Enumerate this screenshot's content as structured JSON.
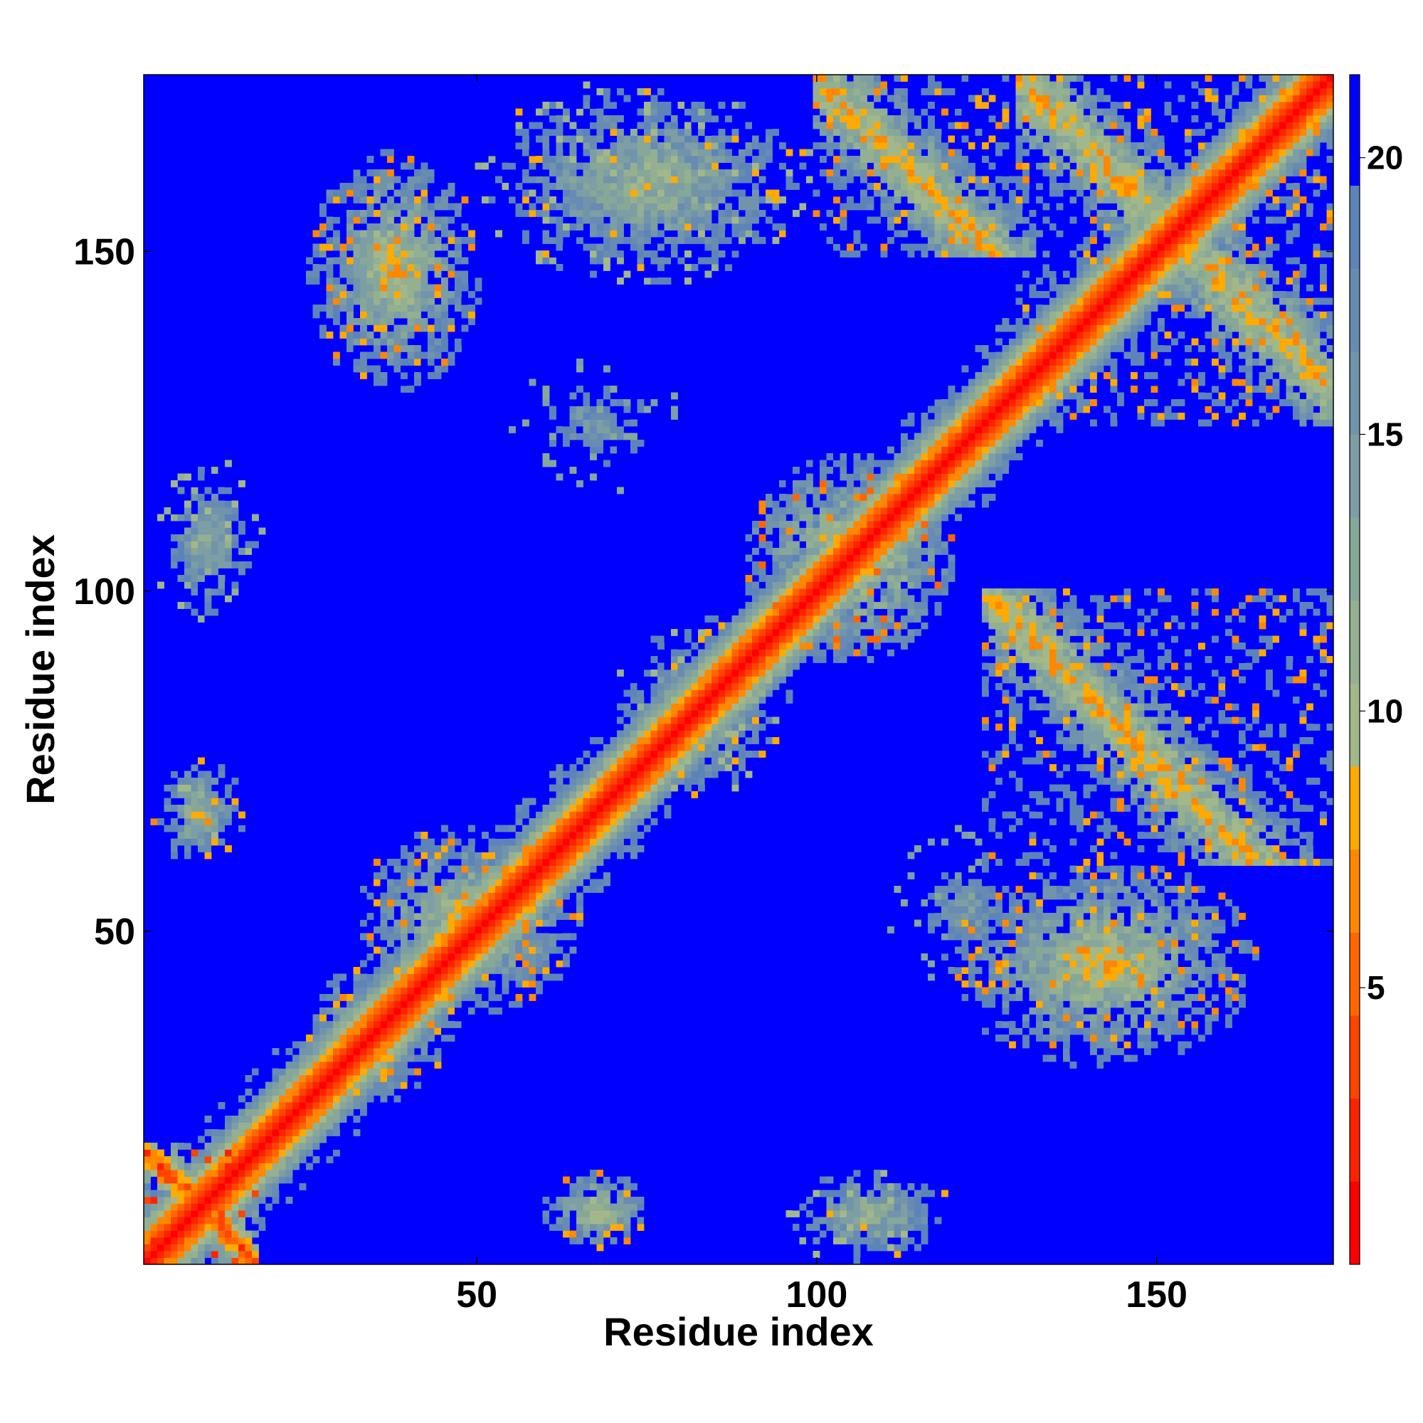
{
  "chart_data": {
    "type": "heatmap",
    "title": "",
    "xlabel": "Residue index",
    "ylabel": "Residue index",
    "n_residues": 176,
    "xlim": [
      1,
      176
    ],
    "ylim": [
      1,
      176
    ],
    "xticks": [
      50,
      100,
      150
    ],
    "yticks": [
      50,
      100,
      150
    ],
    "colorbar": {
      "ticks": [
        5,
        10,
        15,
        20
      ],
      "range": [
        0,
        21.5
      ],
      "levels": [
        {
          "upto": 1.5,
          "color": "#ff0000"
        },
        {
          "upto": 3.0,
          "color": "#ff2200"
        },
        {
          "upto": 4.5,
          "color": "#ff4400"
        },
        {
          "upto": 6.0,
          "color": "#ff6600"
        },
        {
          "upto": 7.5,
          "color": "#ff8800"
        },
        {
          "upto": 9.0,
          "color": "#ffaa00"
        },
        {
          "upto": 10.5,
          "color": "#a3b88a"
        },
        {
          "upto": 12.0,
          "color": "#94b090"
        },
        {
          "upto": 13.5,
          "color": "#87a798"
        },
        {
          "upto": 15.0,
          "color": "#7c9ea4"
        },
        {
          "upto": 16.5,
          "color": "#7194ab"
        },
        {
          "upto": 18.0,
          "color": "#678bb2"
        },
        {
          "upto": 19.5,
          "color": "#5d84b8"
        },
        {
          "upto": 21.5,
          "color": "#0000ff"
        }
      ]
    },
    "value_description": "Pairwise residue distance map (contact map); diagonal ~0 (red), background ≥20 (blue)",
    "diagonal_band_halfwidth": 8,
    "off_diagonal_regions": [
      {
        "x": [
          1,
          17
        ],
        "y": [
          1,
          18
        ],
        "kind": "cross",
        "min": 1.5
      },
      {
        "x": [
          25,
          45
        ],
        "y": [
          25,
          45
        ],
        "kind": "band_widen",
        "min": 6
      },
      {
        "x": [
          32,
          65
        ],
        "y": [
          38,
          65
        ],
        "kind": "patch",
        "min": 6
      },
      {
        "x": [
          70,
          95
        ],
        "y": [
          70,
          95
        ],
        "kind": "patch",
        "min": 8
      },
      {
        "x": [
          90,
          120
        ],
        "y": [
          90,
          120
        ],
        "kind": "patch",
        "min": 5
      },
      {
        "x": [
          130,
          176
        ],
        "y": [
          125,
          176
        ],
        "kind": "antidiagonal",
        "min": 6
      },
      {
        "x": [
          100,
          140
        ],
        "y": [
          150,
          176
        ],
        "kind": "antidiagonal",
        "min": 6
      },
      {
        "x": [
          50,
          100
        ],
        "y": [
          145,
          176
        ],
        "kind": "patch",
        "min": 8
      },
      {
        "x": [
          25,
          50
        ],
        "y": [
          130,
          165
        ],
        "kind": "patch",
        "min": 6
      },
      {
        "x": [
          2,
          18
        ],
        "y": [
          95,
          120
        ],
        "kind": "patch",
        "min": 9
      },
      {
        "x": [
          55,
          80
        ],
        "y": [
          115,
          135
        ],
        "kind": "patch",
        "min": 12
      },
      {
        "x": [
          2,
          15
        ],
        "y": [
          60,
          75
        ],
        "kind": "patch",
        "min": 7
      },
      {
        "x": [
          125,
          176
        ],
        "y": [
          60,
          100
        ],
        "kind": "antidiagonal",
        "min": 6
      },
      {
        "x": [
          120,
          165
        ],
        "y": [
          30,
          60
        ],
        "kind": "patch",
        "min": 6
      },
      {
        "x": [
          110,
          135
        ],
        "y": [
          40,
          65
        ],
        "kind": "patch",
        "min": 12
      },
      {
        "x": [
          95,
          120
        ],
        "y": [
          1,
          15
        ],
        "kind": "patch",
        "min": 8
      },
      {
        "x": [
          60,
          75
        ],
        "y": [
          3,
          14
        ],
        "kind": "patch",
        "min": 6
      }
    ]
  }
}
